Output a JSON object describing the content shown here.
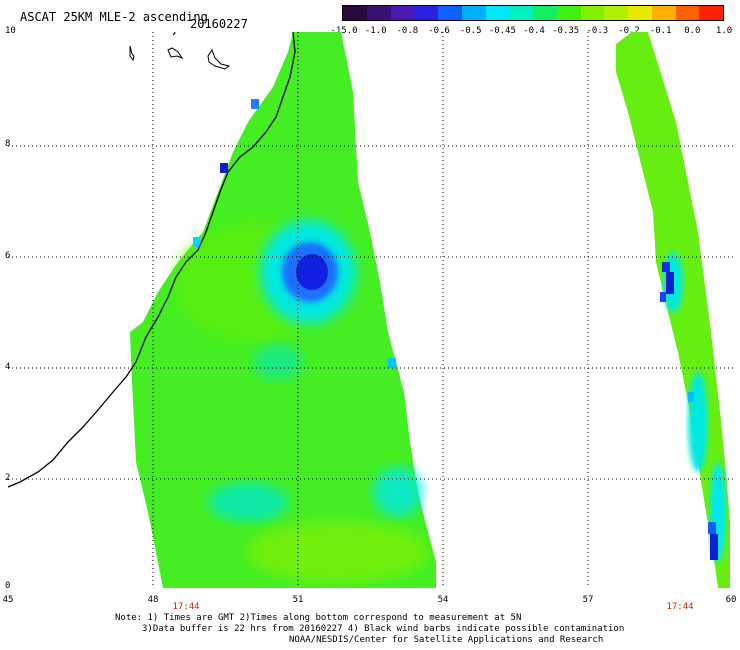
{
  "header": {
    "title": "ASCAT 25KM MLE-2 ascending",
    "date": "20160227"
  },
  "colorbar": {
    "colors": [
      "#2a0a3a",
      "#3a1070",
      "#4a18b0",
      "#2a20e0",
      "#1060ff",
      "#00b0ff",
      "#00e8ff",
      "#00f0c0",
      "#10f060",
      "#40f010",
      "#80f000",
      "#b0f000",
      "#e8e800",
      "#ffb000",
      "#ff6000",
      "#ff2000"
    ],
    "labels": [
      "-15.0",
      "-1.0",
      "-0.8",
      "-0.6",
      "-0.5",
      "-0.45",
      "-0.4",
      "-0.35",
      "-0.3",
      "-0.2",
      "-0.1",
      "0.0",
      "1.0"
    ]
  },
  "axes": {
    "x_ticks": [
      "45",
      "48",
      "51",
      "54",
      "57",
      "60"
    ],
    "y_ticks": [
      "10",
      "8",
      "6",
      "4",
      "2",
      "0"
    ],
    "x_range": [
      45,
      60
    ],
    "y_range": [
      0,
      10
    ],
    "time_labels": [
      "17:44",
      "17:44"
    ]
  },
  "map": {
    "field": "ASCAT 25KM MLE-2 ascending",
    "grid_lines": true,
    "coastline": true
  },
  "footer": {
    "line1": "Note: 1) Times are GMT 2)Times along bottom correspond to measurement at 5N",
    "line2": "3)Data buffer is 22 hrs from 20160227 4) Black wind barbs indicate possible contamination",
    "line3": "NOAA/NESDIS/Center for Satellite Applications and Research"
  }
}
